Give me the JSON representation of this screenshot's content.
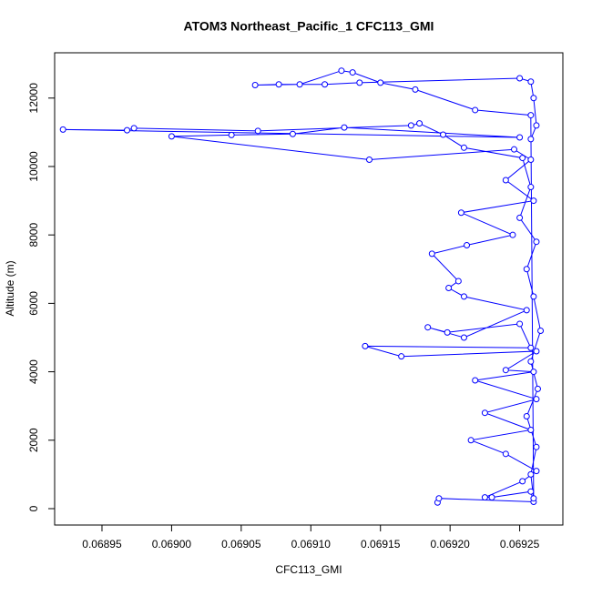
{
  "chart_data": {
    "type": "scatter_line",
    "title": "ATOM3 Northeast_Pacific_1 CFC113_GMI",
    "x_label": "CFC113_GMI",
    "y_label": "Altitude (m)",
    "color": "#0000ff",
    "xlim": [
      0.068916,
      0.069281
    ],
    "ylim": [
      -479,
      13324
    ],
    "xticks": [
      0.06895,
      {
        "value": 0.069,
        "label": "0.06900"
      },
      0.06905,
      {
        "value": 0.0691,
        "label": "0.06910"
      },
      0.06915,
      {
        "value": 0.0692,
        "label": "0.06920"
      },
      0.06925
    ],
    "yticks": [
      0,
      2000,
      4000,
      6000,
      8000,
      10000,
      12000
    ],
    "x": [
      0.069191,
      0.069192,
      0.06926,
      0.069258,
      0.06923,
      0.069225,
      0.069252,
      0.069262,
      0.06924,
      0.069215,
      0.069258,
      0.069225,
      0.069262,
      0.069218,
      0.06926,
      0.06924,
      0.069262,
      0.069165,
      0.069139,
      0.069258,
      0.06925,
      0.069198,
      0.069184,
      0.06921,
      0.069255,
      0.06921,
      0.069199,
      0.069206,
      0.069187,
      0.069212,
      0.069245,
      0.069208,
      0.06926,
      0.06924,
      0.069258,
      0.069246,
      0.069142,
      0.069,
      0.069043,
      0.069087,
      0.069124,
      0.06925,
      0.068922,
      0.068968,
      0.068973,
      0.069062,
      0.069172,
      0.069178,
      0.069195,
      0.06921,
      0.069252,
      0.069258,
      0.06925,
      0.069262,
      0.069255,
      0.06926,
      0.069265,
      0.069258,
      0.069263,
      0.069255,
      0.069262,
      0.069258,
      0.06926,
      0.069258,
      0.069218,
      0.069175,
      0.06915,
      0.06913,
      0.069122,
      0.069092,
      0.06906,
      0.069077,
      0.06911,
      0.069135,
      0.06925,
      0.069258,
      0.06926,
      0.069262,
      0.069258
    ],
    "values": [
      180,
      300,
      200,
      500,
      330,
      330,
      800,
      1100,
      1600,
      2000,
      2300,
      2800,
      3200,
      3750,
      4000,
      4050,
      4600,
      4450,
      4750,
      4700,
      5400,
      5150,
      5300,
      5000,
      5800,
      6200,
      6450,
      6650,
      7450,
      7700,
      8000,
      8650,
      9000,
      9600,
      10200,
      10500,
      10200,
      10880,
      10920,
      10950,
      11140,
      10850,
      11080,
      11060,
      11120,
      11040,
      11200,
      11260,
      10930,
      10550,
      10250,
      9400,
      8500,
      7800,
      7000,
      6200,
      5200,
      4300,
      3500,
      2700,
      1800,
      1000,
      300,
      11500,
      11650,
      12250,
      12450,
      12750,
      12800,
      12400,
      12380,
      12400,
      12400,
      12450,
      12580,
      12480,
      12000,
      11200,
      10800
    ]
  }
}
